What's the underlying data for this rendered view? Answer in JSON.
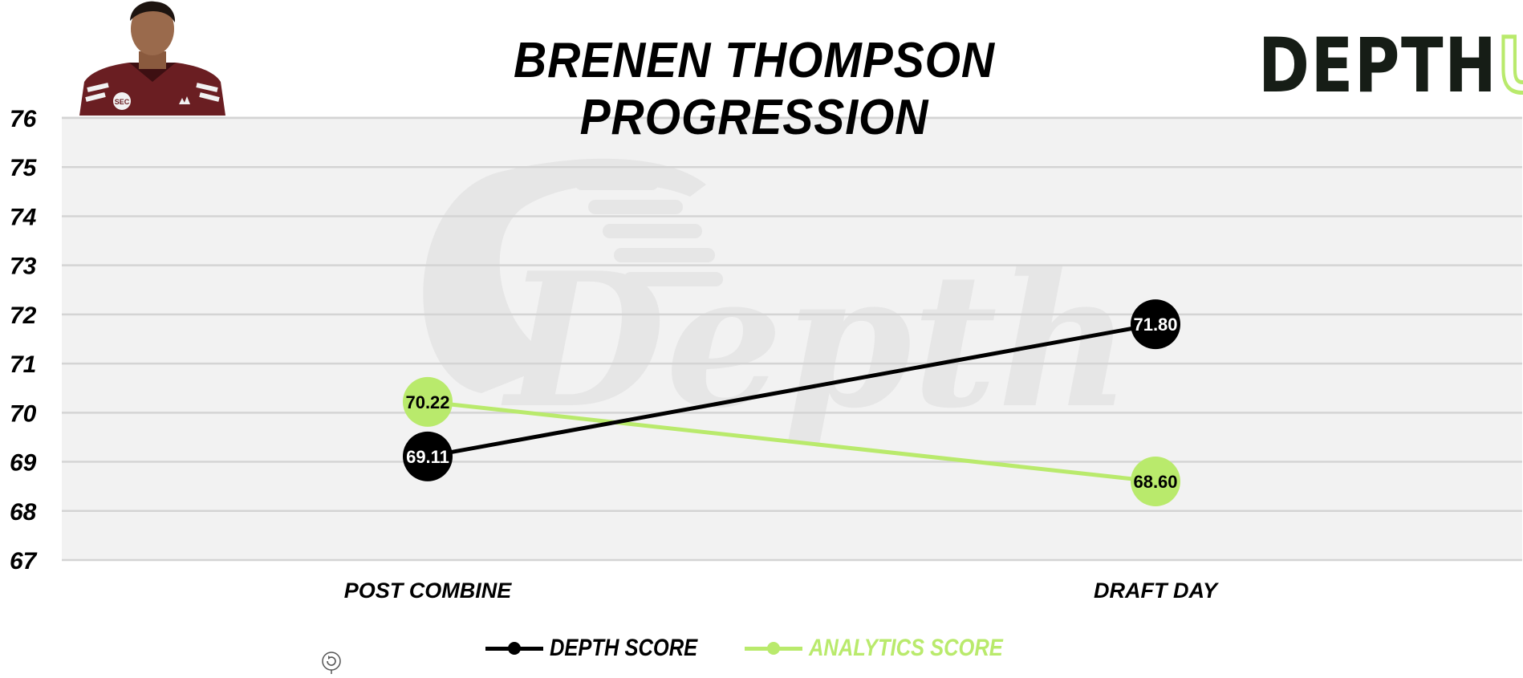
{
  "title": "BRENEN THOMPSON PROGRESSION",
  "brand": {
    "part1": "DEPTH",
    "part2": "U"
  },
  "watermark": "Depth",
  "colors": {
    "depth": "#000000",
    "analytics": "#b9ea6c",
    "plot_bg": "#f2f2f2",
    "grid": "#d4d4d4"
  },
  "icons": {
    "player_photo": "player-headshot",
    "reload": "refresh-icon"
  },
  "chart_data": {
    "type": "line",
    "title": "BRENEN THOMPSON PROGRESSION",
    "categories": [
      "POST COMBINE",
      "DRAFT DAY"
    ],
    "ylim": [
      67,
      76
    ],
    "yticks": [
      67,
      68,
      69,
      70,
      71,
      72,
      73,
      74,
      75,
      76
    ],
    "grid": true,
    "legend_position": "bottom",
    "series": [
      {
        "name": "DEPTH SCORE",
        "values": [
          69.11,
          71.8
        ],
        "labels": [
          "69.11",
          "71.80"
        ],
        "color": "#000000"
      },
      {
        "name": "ANALYTICS SCORE",
        "values": [
          70.22,
          68.6
        ],
        "labels": [
          "70.22",
          "68.60"
        ],
        "color": "#b9ea6c"
      }
    ]
  }
}
